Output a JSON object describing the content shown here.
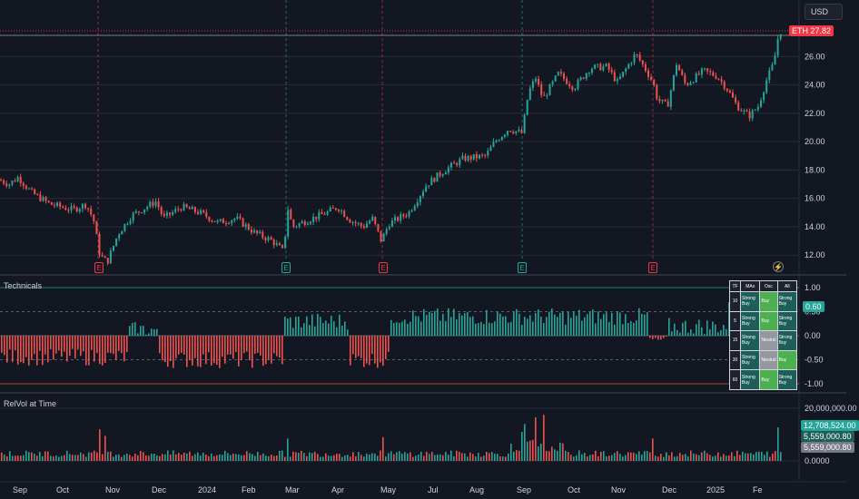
{
  "currency_label": "USD",
  "main_chart": {
    "price_badge": {
      "symbol": "ETH",
      "value": "27.82",
      "color": "#f23645"
    },
    "y_ticks": [
      "26.00",
      "24.00",
      "22.00",
      "20.00",
      "18.00",
      "16.00",
      "14.00",
      "12.00"
    ],
    "earnings_markers": [
      {
        "label": "E",
        "color": "#f23645"
      },
      {
        "label": "E",
        "color": "#22ab94"
      },
      {
        "label": "E",
        "color": "#f23645"
      },
      {
        "label": "E",
        "color": "#22ab94"
      },
      {
        "label": "E",
        "color": "#f23645"
      }
    ],
    "bolt_icon": "⚡"
  },
  "technicals": {
    "title": "Technicals",
    "y_ticks": [
      "1.00",
      "0.50",
      "0.00",
      "-0.50",
      "-1.00"
    ],
    "current_badge": "0.60",
    "current_value": 0.6,
    "table": {
      "headers": [
        "TF",
        "MAs",
        "Osc",
        "All"
      ],
      "rows": [
        {
          "tf": "10",
          "mas": "Strong Buy",
          "osc": "Buy",
          "all": "Strong Buy"
        },
        {
          "tf": "5",
          "mas": "Strong Buy",
          "osc": "Buy",
          "all": "Strong Buy"
        },
        {
          "tf": "15",
          "mas": "Strong Buy",
          "osc": "Neutral",
          "all": "Strong Buy"
        },
        {
          "tf": "30",
          "mas": "Strong Buy",
          "osc": "Neutral",
          "all": "Buy"
        },
        {
          "tf": "60",
          "mas": "Strong Buy",
          "osc": "Buy",
          "all": "Strong Buy"
        }
      ]
    }
  },
  "relvol": {
    "title": "RelVol at Time",
    "y_ticks": [
      "20,000,000.00",
      "0.0000"
    ],
    "badges": [
      "12,708,524.00",
      "5,559,000.80",
      "5,559,000.80"
    ]
  },
  "x_axis": [
    "Sep",
    "Oct",
    "Nov",
    "Dec",
    "2024",
    "Feb",
    "Mar",
    "Apr",
    "May",
    "Jul",
    "Aug",
    "Sep",
    "Oct",
    "Nov",
    "Dec",
    "2025",
    "Fe"
  ],
  "colors": {
    "up": "#26a69a",
    "down": "#ef5350",
    "grid": "#2a2e39",
    "text": "#d1d4dc"
  },
  "chart_data": {
    "type": "candlestick",
    "y_range": [
      10.8,
      28.2
    ],
    "anchors": [
      [
        0,
        17.3
      ],
      [
        10,
        17.0
      ],
      [
        20,
        17.5
      ],
      [
        35,
        16.4
      ],
      [
        55,
        15.6
      ],
      [
        80,
        15.2
      ],
      [
        95,
        15.6
      ],
      [
        103,
        14.5
      ],
      [
        110,
        12.0
      ],
      [
        118,
        11.5
      ],
      [
        130,
        13.5
      ],
      [
        145,
        14.8
      ],
      [
        172,
        15.8
      ],
      [
        180,
        14.6
      ],
      [
        200,
        15.4
      ],
      [
        220,
        15.0
      ],
      [
        240,
        14.3
      ],
      [
        260,
        14.6
      ],
      [
        280,
        13.6
      ],
      [
        300,
        13.0
      ],
      [
        313,
        12.2
      ],
      [
        316,
        15.6
      ],
      [
        322,
        14.0
      ],
      [
        340,
        14.5
      ],
      [
        360,
        15.0
      ],
      [
        372,
        15.4
      ],
      [
        385,
        14.5
      ],
      [
        400,
        14.0
      ],
      [
        410,
        14.6
      ],
      [
        420,
        13.0
      ],
      [
        428,
        14.2
      ],
      [
        450,
        15.0
      ],
      [
        470,
        17.0
      ],
      [
        490,
        18.0
      ],
      [
        510,
        18.8
      ],
      [
        535,
        19.0
      ],
      [
        545,
        20.0
      ],
      [
        560,
        20.9
      ],
      [
        575,
        20.6
      ],
      [
        582,
        23.5
      ],
      [
        590,
        24.5
      ],
      [
        598,
        23.0
      ],
      [
        615,
        24.8
      ],
      [
        632,
        23.8
      ],
      [
        650,
        25.2
      ],
      [
        668,
        25.3
      ],
      [
        680,
        24.2
      ],
      [
        690,
        25.2
      ],
      [
        700,
        26.2
      ],
      [
        712,
        25.0
      ],
      [
        719,
        24.2
      ],
      [
        724,
        23.0
      ],
      [
        735,
        22.5
      ],
      [
        745,
        25.5
      ],
      [
        755,
        24.0
      ],
      [
        775,
        25.0
      ],
      [
        790,
        24.6
      ],
      [
        800,
        23.8
      ],
      [
        812,
        22.5
      ],
      [
        825,
        21.8
      ],
      [
        835,
        22.5
      ],
      [
        845,
        24.5
      ],
      [
        852,
        25.5
      ],
      [
        858,
        27.8
      ]
    ],
    "technicals_segments": [
      [
        0,
        140,
        -0.45
      ],
      [
        140,
        175,
        0.12
      ],
      [
        175,
        313,
        -0.5
      ],
      [
        313,
        385,
        0.3
      ],
      [
        385,
        428,
        -0.5
      ],
      [
        428,
        715,
        0.4
      ],
      [
        715,
        735,
        -0.1
      ],
      [
        735,
        800,
        0.2
      ],
      [
        800,
        858,
        0.55
      ]
    ],
    "relvol_y_range": [
      0,
      20000000
    ]
  }
}
